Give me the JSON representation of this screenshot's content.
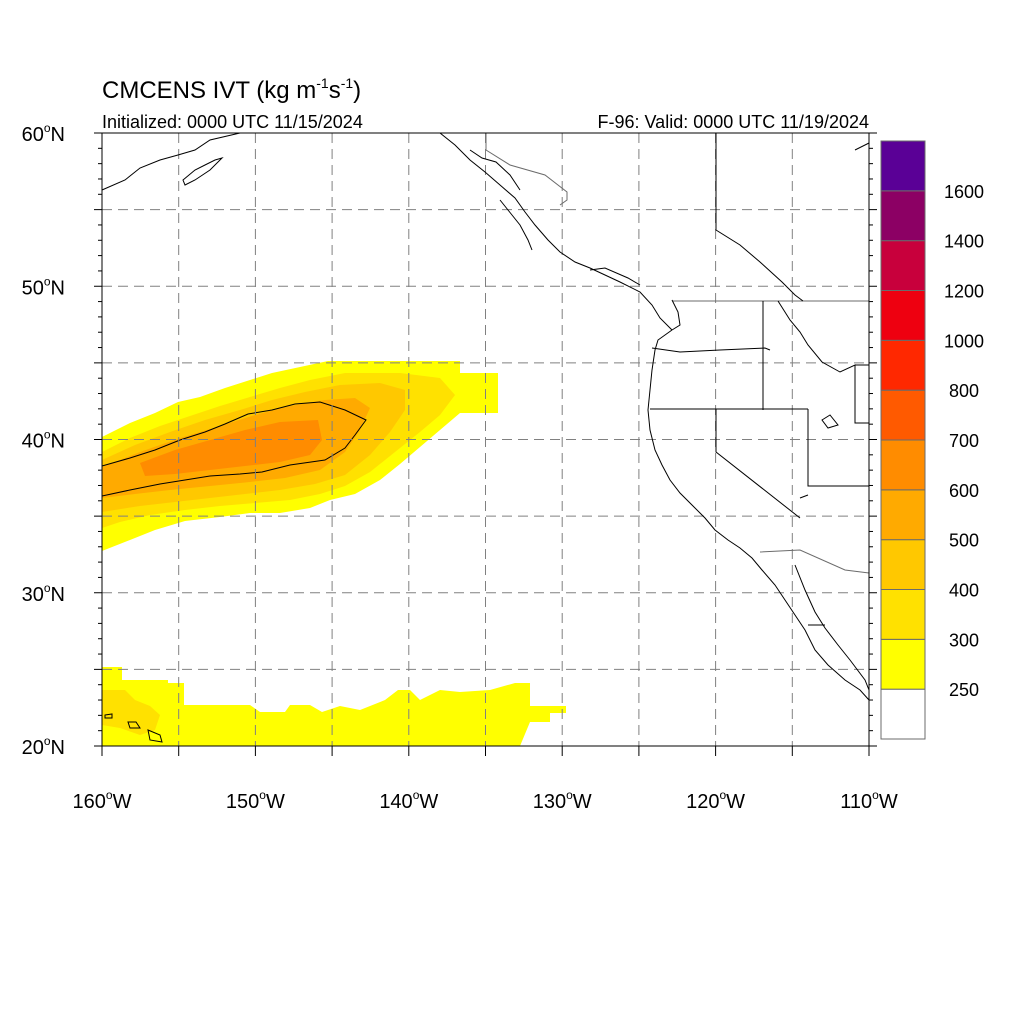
{
  "title": {
    "main": "CMCENS IVT (kg m",
    "exp1": "-1",
    "mid": "s",
    "exp2": "-1",
    "close": ")"
  },
  "init_label": "Initialized: 0000 UTC 11/15/2024",
  "valid_label": "F-96: Valid: 0000 UTC 11/19/2024",
  "axes": {
    "lat_labels": [
      {
        "deg": "60",
        "hemi": "N",
        "lat": 60
      },
      {
        "deg": "50",
        "hemi": "N",
        "lat": 50
      },
      {
        "deg": "40",
        "hemi": "N",
        "lat": 40
      },
      {
        "deg": "30",
        "hemi": "N",
        "lat": 30
      },
      {
        "deg": "20",
        "hemi": "N",
        "lat": 20
      }
    ],
    "lon_labels": [
      {
        "deg": "160",
        "hemi": "W",
        "lon": -160
      },
      {
        "deg": "150",
        "hemi": "W",
        "lon": -150
      },
      {
        "deg": "140",
        "hemi": "W",
        "lon": -140
      },
      {
        "deg": "130",
        "hemi": "W",
        "lon": -130
      },
      {
        "deg": "120",
        "hemi": "W",
        "lon": -120
      },
      {
        "deg": "110",
        "hemi": "W",
        "lon": -110
      }
    ],
    "lon_range": [
      -160,
      -110
    ],
    "lat_range": [
      20,
      60
    ],
    "grid": "dashed, every 5 degrees"
  },
  "colorbar": {
    "labels": [
      "250",
      "300",
      "400",
      "500",
      "600",
      "700",
      "800",
      "1000",
      "1200",
      "1400",
      "1600"
    ],
    "colors": [
      "#ffffff",
      "#ffff00",
      "#ffe100",
      "#ffc800",
      "#ffaa00",
      "#ff8c00",
      "#ff5a00",
      "#ff2800",
      "#ee0010",
      "#c8003c",
      "#8c0064",
      "#5a0096"
    ]
  },
  "icons": {
    "basemap": "coastline-and-state-borders",
    "contour": "600-ivt-contour"
  }
}
